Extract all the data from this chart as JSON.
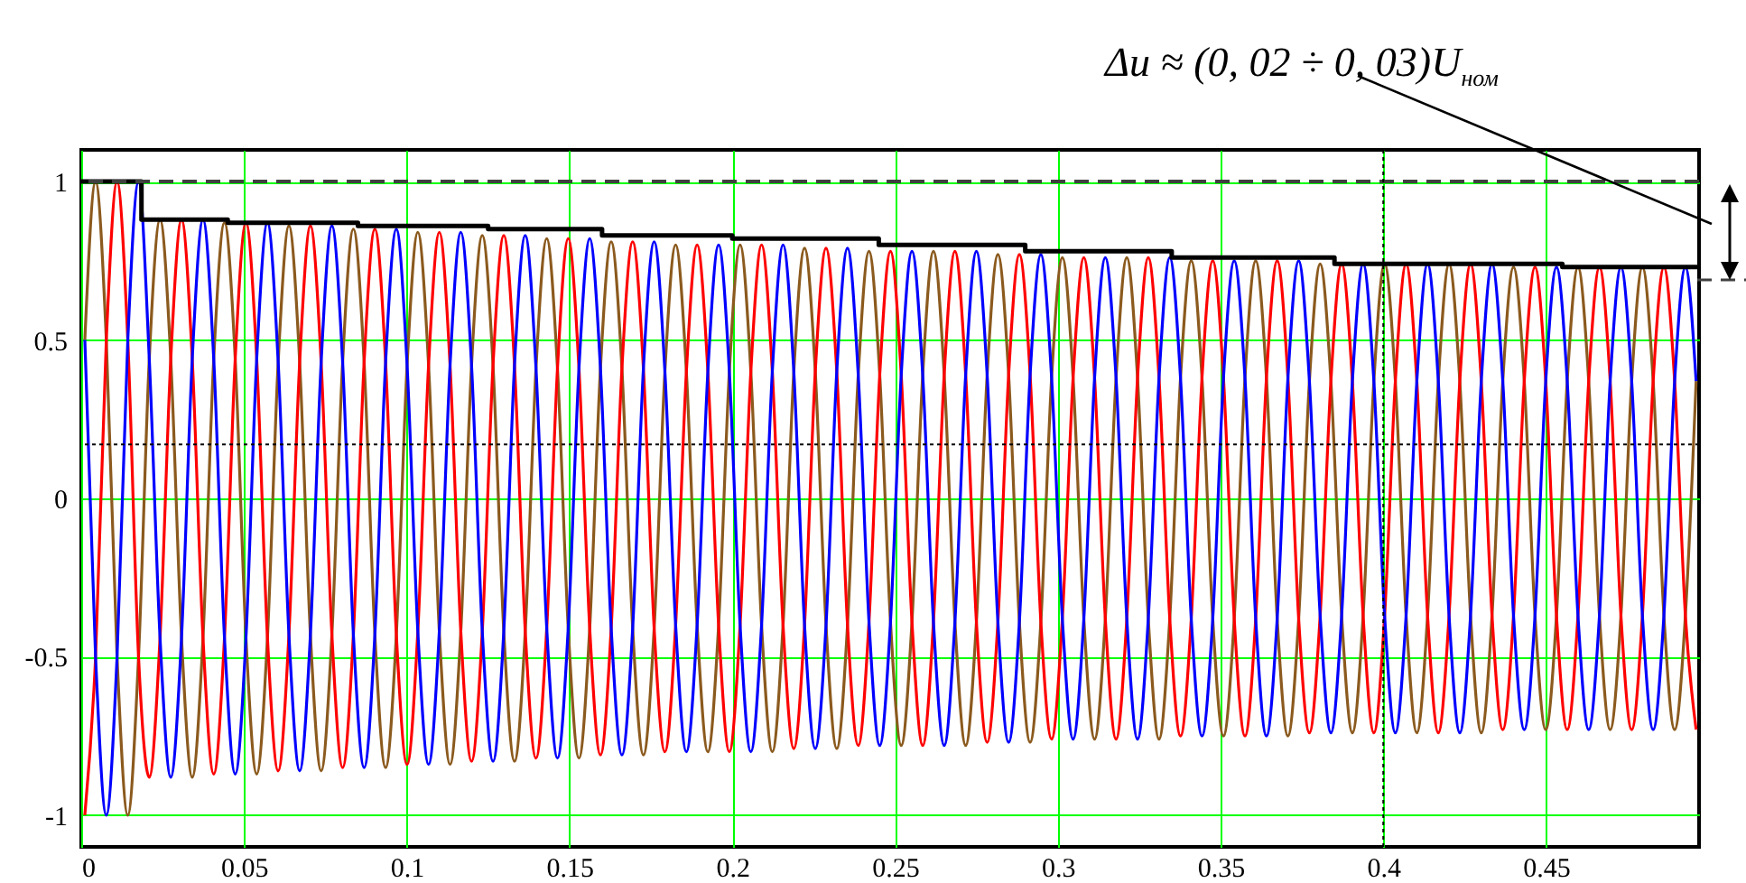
{
  "chart_data": {
    "type": "line",
    "annotations": [
      "Δu ≈ (0, 02 ÷ 0, 03)U$_{ном}$"
    ],
    "x": [
      0.0011,
      0.0044,
      0.0077,
      0.011,
      0.0143,
      0.0176,
      0.0209,
      0.0242,
      0.0275,
      0.0308,
      0.0341,
      0.0374,
      0.0407,
      0.044,
      0.0473,
      0.0506,
      0.0539,
      0.0572,
      0.0605,
      0.0638,
      0.0671,
      0.0704,
      0.0737,
      0.077,
      0.0803,
      0.0836,
      0.0869,
      0.0902,
      0.0935,
      0.0968,
      0.1001,
      0.1034,
      0.1067,
      0.11,
      0.1133,
      0.1166,
      0.1199,
      0.1232,
      0.1265,
      0.1298,
      0.1331,
      0.1364,
      0.1397,
      0.143,
      0.1463,
      0.1496,
      0.1529,
      0.1562,
      0.1595,
      0.1628,
      0.1661,
      0.1694,
      0.1727,
      0.176,
      0.1793,
      0.1826,
      0.1859,
      0.1892,
      0.1925,
      0.1958,
      0.1991,
      0.2024,
      0.2057,
      0.209,
      0.2123,
      0.2156,
      0.2189,
      0.2222,
      0.2255,
      0.2288,
      0.2321,
      0.2354,
      0.2387,
      0.242,
      0.2453,
      0.2486,
      0.2519,
      0.2552,
      0.2585,
      0.2618,
      0.2651,
      0.2684,
      0.2717,
      0.275,
      0.2783,
      0.2816,
      0.2849,
      0.2882,
      0.2915,
      0.2948,
      0.2981,
      0.3014,
      0.3047,
      0.308,
      0.3113,
      0.3146,
      0.3179,
      0.3212,
      0.3245,
      0.3278,
      0.3311,
      0.3344,
      0.3377,
      0.341,
      0.3443,
      0.3476,
      0.3509,
      0.3542,
      0.3575,
      0.3608,
      0.3641,
      0.3674,
      0.3707,
      0.374,
      0.3773,
      0.3806,
      0.3839,
      0.3872,
      0.3905,
      0.3938,
      0.3971,
      0.4004,
      0.4037,
      0.407,
      0.4103,
      0.4136,
      0.4169,
      0.4202,
      0.4235,
      0.4268,
      0.4301,
      0.4334,
      0.4367,
      0.44,
      0.4433,
      0.4466,
      0.4499,
      0.4532,
      0.4565,
      0.4598,
      0.4631,
      0.4664,
      0.4697,
      0.473,
      0.4763,
      0.4796,
      0.4829,
      0.4862,
      0.4895,
      0.4928,
      0.4961
    ],
    "series": [
      {
        "color": "#8b5a1e",
        "values": [
          0.5,
          1,
          0.5,
          -0.5,
          -1,
          -0.5,
          0.44,
          0.88,
          0.44,
          -0.44,
          -0.88,
          -0.44,
          0.44,
          0.87,
          0.44,
          -0.44,
          -0.87,
          -0.44,
          0.43,
          0.86,
          0.43,
          -0.43,
          -0.86,
          -0.43,
          0.43,
          0.85,
          0.43,
          -0.43,
          -0.85,
          -0.43,
          0.42,
          0.84,
          0.42,
          -0.42,
          -0.84,
          -0.42,
          0.42,
          0.83,
          0.42,
          -0.42,
          -0.83,
          -0.42,
          0.41,
          0.82,
          0.41,
          -0.41,
          -0.82,
          -0.41,
          0.41,
          0.81,
          0.41,
          -0.41,
          -0.81,
          -0.41,
          0.4,
          0.8,
          0.4,
          -0.4,
          -0.8,
          -0.4,
          0.4,
          0.8,
          0.4,
          -0.4,
          -0.8,
          -0.4,
          0.4,
          0.79,
          0.4,
          -0.4,
          -0.79,
          -0.4,
          0.39,
          0.78,
          0.39,
          -0.39,
          -0.78,
          -0.39,
          0.39,
          0.78,
          0.39,
          -0.39,
          -0.78,
          -0.39,
          0.39,
          0.77,
          0.39,
          -0.39,
          -0.77,
          -0.39,
          0.38,
          0.76,
          0.38,
          -0.38,
          -0.76,
          -0.38,
          0.38,
          0.76,
          0.38,
          -0.38,
          -0.76,
          -0.38,
          0.38,
          0.75,
          0.38,
          -0.38,
          -0.75,
          -0.38,
          0.38,
          0.75,
          0.38,
          -0.38,
          -0.75,
          -0.38,
          0.37,
          0.74,
          0.37,
          -0.37,
          -0.74,
          -0.37,
          0.37,
          0.74,
          0.37,
          -0.37,
          -0.74,
          -0.37,
          0.37,
          0.74,
          0.37,
          -0.37,
          -0.74,
          -0.37,
          0.37,
          0.73,
          0.37,
          -0.37,
          -0.73,
          -0.37,
          0.37,
          0.73,
          0.37,
          -0.37,
          -0.73,
          -0.37,
          0.37,
          0.73,
          0.37,
          -0.37,
          -0.73,
          -0.37,
          0.37
        ]
      },
      {
        "color": "#ff0000",
        "values": [
          -1,
          -0.5,
          0.5,
          1,
          0.5,
          -0.5,
          -0.88,
          -0.44,
          0.44,
          0.88,
          0.44,
          -0.44,
          -0.87,
          -0.44,
          0.44,
          0.87,
          0.44,
          -0.44,
          -0.86,
          -0.43,
          0.43,
          0.86,
          0.43,
          -0.43,
          -0.85,
          -0.43,
          0.43,
          0.85,
          0.43,
          -0.43,
          -0.84,
          -0.42,
          0.42,
          0.84,
          0.42,
          -0.42,
          -0.83,
          -0.42,
          0.42,
          0.83,
          0.42,
          -0.42,
          -0.82,
          -0.41,
          0.41,
          0.82,
          0.41,
          -0.41,
          -0.81,
          -0.41,
          0.41,
          0.81,
          0.41,
          -0.41,
          -0.8,
          -0.4,
          0.4,
          0.8,
          0.4,
          -0.4,
          -0.8,
          -0.4,
          0.4,
          0.8,
          0.4,
          -0.4,
          -0.79,
          -0.4,
          0.4,
          0.79,
          0.4,
          -0.4,
          -0.78,
          -0.39,
          0.39,
          0.78,
          0.39,
          -0.39,
          -0.78,
          -0.39,
          0.39,
          0.78,
          0.39,
          -0.39,
          -0.77,
          -0.39,
          0.39,
          0.77,
          0.39,
          -0.39,
          -0.76,
          -0.38,
          0.38,
          0.76,
          0.38,
          -0.38,
          -0.76,
          -0.38,
          0.38,
          0.76,
          0.38,
          -0.38,
          -0.75,
          -0.38,
          0.38,
          0.75,
          0.38,
          -0.38,
          -0.75,
          -0.38,
          0.38,
          0.75,
          0.38,
          -0.38,
          -0.74,
          -0.37,
          0.37,
          0.74,
          0.37,
          -0.37,
          -0.74,
          -0.37,
          0.37,
          0.74,
          0.37,
          -0.37,
          -0.74,
          -0.37,
          0.37,
          0.74,
          0.37,
          -0.37,
          -0.73,
          -0.37,
          0.37,
          0.73,
          0.37,
          -0.37,
          -0.73,
          -0.37,
          0.37,
          0.73,
          0.37,
          -0.37,
          -0.73,
          -0.37,
          0.37,
          0.73,
          0.37,
          -0.37,
          -0.73
        ]
      },
      {
        "color": "#0000ff",
        "values": [
          0.5,
          -0.5,
          -1,
          -0.5,
          0.5,
          1,
          0.44,
          -0.44,
          -0.88,
          -0.44,
          0.44,
          0.88,
          0.44,
          -0.44,
          -0.87,
          -0.44,
          0.44,
          0.87,
          0.43,
          -0.43,
          -0.86,
          -0.43,
          0.43,
          0.86,
          0.43,
          -0.43,
          -0.85,
          -0.43,
          0.43,
          0.85,
          0.42,
          -0.42,
          -0.84,
          -0.42,
          0.42,
          0.84,
          0.42,
          -0.42,
          -0.83,
          -0.42,
          0.42,
          0.83,
          0.41,
          -0.41,
          -0.82,
          -0.41,
          0.41,
          0.82,
          0.41,
          -0.41,
          -0.81,
          -0.41,
          0.41,
          0.81,
          0.4,
          -0.4,
          -0.8,
          -0.4,
          0.4,
          0.8,
          0.4,
          -0.4,
          -0.8,
          -0.4,
          0.4,
          0.8,
          0.4,
          -0.4,
          -0.79,
          -0.4,
          0.4,
          0.79,
          0.39,
          -0.39,
          -0.78,
          -0.39,
          0.39,
          0.78,
          0.39,
          -0.39,
          -0.78,
          -0.39,
          0.39,
          0.78,
          0.39,
          -0.39,
          -0.77,
          -0.39,
          0.39,
          0.77,
          0.38,
          -0.38,
          -0.76,
          -0.38,
          0.38,
          0.76,
          0.38,
          -0.38,
          -0.76,
          -0.38,
          0.38,
          0.76,
          0.38,
          -0.38,
          -0.75,
          -0.38,
          0.38,
          0.75,
          0.38,
          -0.38,
          -0.75,
          -0.38,
          0.38,
          0.75,
          0.37,
          -0.37,
          -0.74,
          -0.37,
          0.37,
          0.74,
          0.37,
          -0.37,
          -0.74,
          -0.37,
          0.37,
          0.74,
          0.37,
          -0.37,
          -0.74,
          -0.37,
          0.37,
          0.74,
          0.37,
          -0.37,
          -0.73,
          -0.37,
          0.37,
          0.73,
          0.37,
          -0.37,
          -0.73,
          -0.37,
          0.37,
          0.73,
          0.37,
          -0.37,
          -0.73,
          -0.37,
          0.37,
          0.73,
          0.37
        ]
      },
      {
        "type": "step",
        "color": "#000000",
        "x": [
          0,
          0.0185,
          0.045,
          0.085,
          0.125,
          0.16,
          0.2,
          0.245,
          0.29,
          0.335,
          0.385,
          0.455,
          0.497
        ],
        "values": [
          1,
          0.88,
          0.87,
          0.86,
          0.85,
          0.83,
          0.82,
          0.8,
          0.78,
          0.76,
          0.74,
          0.73,
          0.73
        ]
      }
    ],
    "xlim": [
      0,
      0.497
    ],
    "ylim": [
      -1.1,
      1.1
    ],
    "xticks": [
      0,
      0.05,
      0.1,
      0.15,
      0.2,
      0.25,
      0.3,
      0.35,
      0.4,
      0.45
    ],
    "yticks": [
      -1,
      -0.5,
      0,
      0.5,
      1
    ],
    "grid": true,
    "ref_lines": [
      {
        "axis": "y",
        "value": 1,
        "line_style": "dashed",
        "color": "#404040"
      },
      {
        "axis": "y",
        "value": 0.17,
        "line_style": "dotted",
        "color": "#000000"
      },
      {
        "axis": "x",
        "value": 0.4,
        "line_style": "dotted",
        "color": "#000000"
      }
    ]
  }
}
